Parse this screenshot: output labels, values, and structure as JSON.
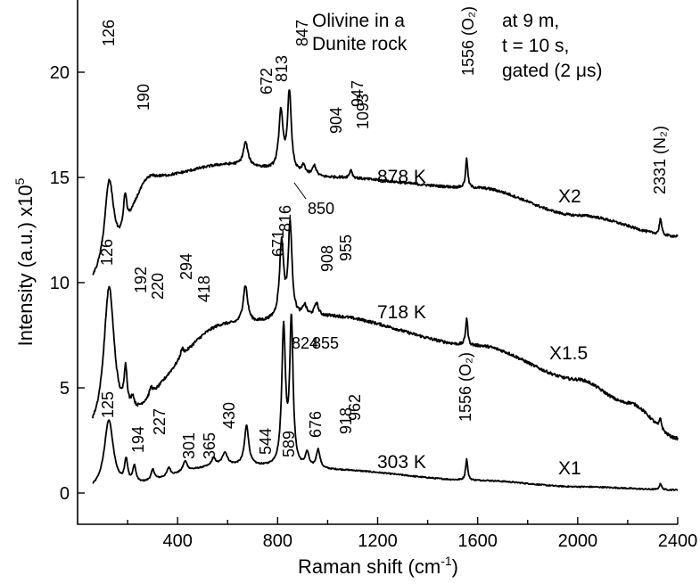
{
  "chart_data": {
    "type": "line",
    "xlabel": "Raman shift (cm",
    "xlabel_sup": "-1",
    "xlabel_end": ")",
    "ylabel": "Intensity (a.u.) x10",
    "ylabel_sup": "5",
    "xlim": [
      0,
      2400
    ],
    "ylim": [
      -1,
      23
    ],
    "x_ticks": [
      400,
      800,
      1200,
      1600,
      2000,
      2400
    ],
    "y_ticks": [
      0,
      5,
      10,
      15,
      20
    ],
    "annotation_top": "Olivine in a\nDunite rock",
    "conditions": "at 9 m,\nt = 10 s,\ngated (2 μs)",
    "series": [
      {
        "name": "303 K",
        "multiplier": "X1",
        "baseline": [
          [
            0,
            0.05
          ],
          [
            100,
            0.15
          ],
          [
            600,
            1.3
          ],
          [
            1000,
            1.1
          ],
          [
            1600,
            0.6
          ],
          [
            2000,
            0.3
          ],
          [
            2400,
            0.15
          ]
        ],
        "peaks": [
          {
            "x": 125,
            "h": 3.3,
            "w": 22,
            "label": "125"
          },
          {
            "x": 194,
            "h": 1.1,
            "w": 8,
            "label": "194"
          },
          {
            "x": 227,
            "h": 0.8,
            "w": 8,
            "label": "227"
          },
          {
            "x": 301,
            "h": 0.5,
            "w": 8,
            "label": "301"
          },
          {
            "x": 365,
            "h": 0.4,
            "w": 8,
            "label": "365"
          },
          {
            "x": 430,
            "h": 0.5,
            "w": 10,
            "label": "430"
          },
          {
            "x": 544,
            "h": 0.35,
            "w": 10,
            "label": "544"
          },
          {
            "x": 589,
            "h": 0.6,
            "w": 12,
            "label": "589"
          },
          {
            "x": 676,
            "h": 1.9,
            "w": 10,
            "label": "676"
          },
          {
            "x": 824,
            "h": 6.5,
            "w": 9,
            "label": "824"
          },
          {
            "x": 855,
            "h": 6.9,
            "w": 8,
            "label": "855"
          },
          {
            "x": 918,
            "h": 0.7,
            "w": 9,
            "label": "918"
          },
          {
            "x": 962,
            "h": 0.9,
            "w": 9,
            "label": "962"
          },
          {
            "x": 1556,
            "h": 1.0,
            "w": 5,
            "label": "1556 (O₂)"
          },
          {
            "x": 2331,
            "h": 0.3,
            "w": 5,
            "label": ""
          }
        ]
      },
      {
        "name": "718 K",
        "multiplier": "X1.5",
        "baseline": [
          [
            0,
            2.6
          ],
          [
            100,
            2.7
          ],
          [
            600,
            8.0
          ],
          [
            1000,
            8.4
          ],
          [
            1600,
            7.0
          ],
          [
            2000,
            5.4
          ],
          [
            2200,
            4.3
          ],
          [
            2400,
            2.6
          ]
        ],
        "peaks": [
          {
            "x": 126,
            "h": 7.0,
            "w": 26,
            "label": "126"
          },
          {
            "x": 192,
            "h": 2.0,
            "w": 8,
            "label": "192"
          },
          {
            "x": 220,
            "h": 0.6,
            "w": 8,
            "label": "220"
          },
          {
            "x": 294,
            "h": 0.4,
            "w": 8,
            "label": "294"
          },
          {
            "x": 418,
            "h": 0.4,
            "w": 8,
            "label": "418"
          },
          {
            "x": 671,
            "h": 1.8,
            "w": 11,
            "label": "671"
          },
          {
            "x": 816,
            "h": 3.6,
            "w": 10,
            "label": "816"
          },
          {
            "x": 850,
            "h": 4.4,
            "w": 9,
            "label": "850"
          },
          {
            "x": 908,
            "h": 0.5,
            "w": 9,
            "label": "908"
          },
          {
            "x": 955,
            "h": 0.6,
            "w": 9,
            "label": "955"
          },
          {
            "x": 1556,
            "h": 1.3,
            "w": 5,
            "label": ""
          },
          {
            "x": 2331,
            "h": 0.5,
            "w": 5,
            "label": ""
          }
        ]
      },
      {
        "name": "878 K",
        "multiplier": "X2",
        "baseline": [
          [
            0,
            9.5
          ],
          [
            100,
            10.0
          ],
          [
            300,
            15.0
          ],
          [
            600,
            15.6
          ],
          [
            1000,
            15.0
          ],
          [
            1600,
            14.5
          ],
          [
            2000,
            13.2
          ],
          [
            2400,
            12.2
          ]
        ],
        "peaks": [
          {
            "x": 126,
            "h": 4.6,
            "w": 24,
            "label": "126"
          },
          {
            "x": 190,
            "h": 1.6,
            "w": 8,
            "label": "190"
          },
          {
            "x": 672,
            "h": 1.1,
            "w": 11,
            "label": "672"
          },
          {
            "x": 813,
            "h": 2.8,
            "w": 10,
            "label": "813"
          },
          {
            "x": 847,
            "h": 3.8,
            "w": 9,
            "label": "847"
          },
          {
            "x": 904,
            "h": 0.4,
            "w": 9,
            "label": "904"
          },
          {
            "x": 947,
            "h": 0.5,
            "w": 9,
            "label": "947"
          },
          {
            "x": 1093,
            "h": 0.4,
            "w": 6,
            "label": "1093"
          },
          {
            "x": 1556,
            "h": 1.4,
            "w": 5,
            "label": "1556 (O₂)"
          },
          {
            "x": 2331,
            "h": 0.8,
            "w": 5,
            "label": "2331 (N₂)"
          }
        ]
      }
    ]
  }
}
